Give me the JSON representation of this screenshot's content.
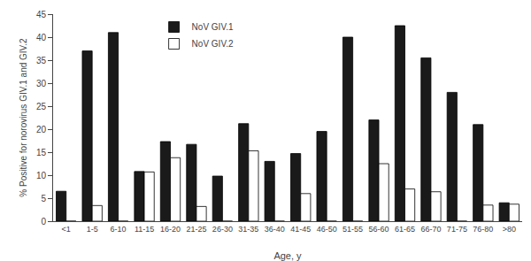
{
  "chart_data": {
    "type": "bar",
    "categories": [
      "<1",
      "1-5",
      "6-10",
      "11-15",
      "16-20",
      "21-25",
      "26-30",
      "31-35",
      "36-40",
      "41-45",
      "46-50",
      "51-55",
      "56-60",
      "61-65",
      "66-70",
      "71-75",
      "76-80",
      ">80"
    ],
    "series": [
      {
        "name": "NoV GIV.1",
        "color": "#1a1a1a",
        "values": [
          6.5,
          37,
          41,
          10.8,
          17.3,
          16.7,
          9.8,
          21.2,
          13,
          14.7,
          19.5,
          40,
          22,
          42.5,
          35.5,
          28,
          21,
          4
        ]
      },
      {
        "name": "NoV GIV.2",
        "color": "#ffffff",
        "values": [
          0,
          3.4,
          0,
          10.7,
          13.8,
          3.2,
          0,
          15.3,
          0,
          6.0,
          0,
          0,
          12.5,
          7.0,
          6.4,
          0,
          3.5,
          3.7
        ]
      }
    ],
    "xlabel": "Age, y",
    "ylabel": "% Positive for norovirus GIV.1 and GIV.2",
    "ylim": [
      0,
      45
    ],
    "yticks": [
      0,
      5,
      10,
      15,
      20,
      25,
      30,
      35,
      40,
      45
    ],
    "grid": false,
    "legend": "upper left"
  }
}
